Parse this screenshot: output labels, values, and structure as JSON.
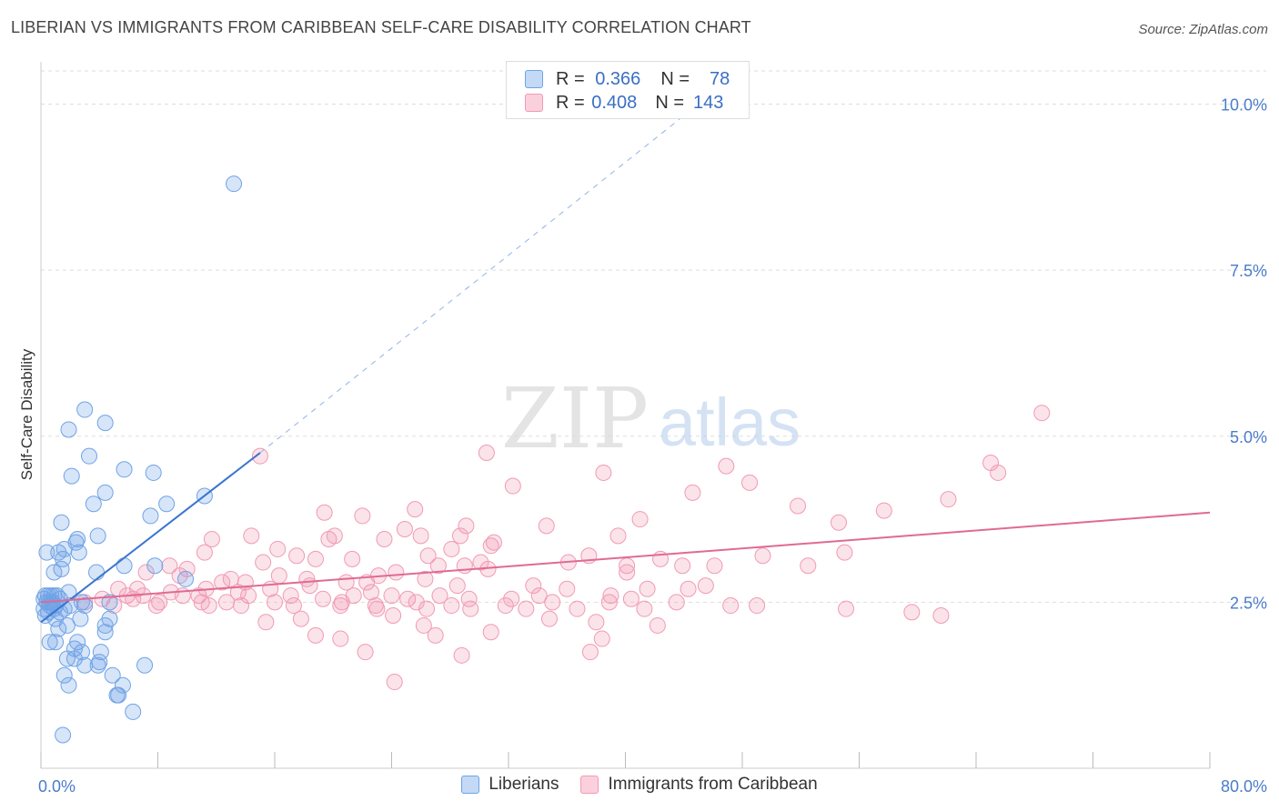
{
  "header": {
    "title": "LIBERIAN VS IMMIGRANTS FROM CARIBBEAN SELF-CARE DISABILITY CORRELATION CHART",
    "source": "Source: ZipAtlas.com"
  },
  "legend": {
    "rows": [
      {
        "r_label": "R =",
        "r_value": "0.366",
        "n_label": "N =",
        "n_value": "78",
        "color": "#6fa3e6"
      },
      {
        "r_label": "R =",
        "r_value": "0.408",
        "n_label": "N =",
        "n_value": "143",
        "color": "#f19ab5"
      }
    ]
  },
  "watermark": {
    "zip": "ZIP",
    "atlas": "atlas"
  },
  "chart_data": {
    "type": "scatter",
    "title": "LIBERIAN VS IMMIGRANTS FROM CARIBBEAN SELF-CARE DISABILITY CORRELATION CHART",
    "ylabel": "Self-Care Disability",
    "xlabel": "",
    "xlim": [
      0,
      80
    ],
    "ylim": [
      0,
      10.5
    ],
    "x_tick_labels": [
      "0.0%",
      "80.0%"
    ],
    "y_tick_labels": [
      "2.5%",
      "5.0%",
      "7.5%",
      "10.0%"
    ],
    "y_ticks": [
      2.5,
      5.0,
      7.5,
      10.0
    ],
    "grid": true,
    "legend_position": "bottom-center",
    "series": [
      {
        "name": "Liberians",
        "color": "#6fa3e6",
        "trend": {
          "x": [
            0,
            15
          ],
          "y": [
            2.2,
            4.75
          ],
          "dashed_to": [
            45,
            10.0
          ]
        },
        "points": [
          [
            13.2,
            8.8
          ],
          [
            3.0,
            5.4
          ],
          [
            1.9,
            5.1
          ],
          [
            4.4,
            5.2
          ],
          [
            3.3,
            4.7
          ],
          [
            5.7,
            4.5
          ],
          [
            7.7,
            4.45
          ],
          [
            2.1,
            4.4
          ],
          [
            4.4,
            4.15
          ],
          [
            11.2,
            4.1
          ],
          [
            8.6,
            3.98
          ],
          [
            3.6,
            3.98
          ],
          [
            7.5,
            3.8
          ],
          [
            1.4,
            3.7
          ],
          [
            3.9,
            3.5
          ],
          [
            2.5,
            3.45
          ],
          [
            1.6,
            3.3
          ],
          [
            0.4,
            3.25
          ],
          [
            1.2,
            3.25
          ],
          [
            2.6,
            3.25
          ],
          [
            1.5,
            3.15
          ],
          [
            2.4,
            3.4
          ],
          [
            1.4,
            3.0
          ],
          [
            5.7,
            3.05
          ],
          [
            7.8,
            3.05
          ],
          [
            0.9,
            2.95
          ],
          [
            3.8,
            2.95
          ],
          [
            9.9,
            2.85
          ],
          [
            0.3,
            2.6
          ],
          [
            0.5,
            2.6
          ],
          [
            0.7,
            2.6
          ],
          [
            1.1,
            2.6
          ],
          [
            1.9,
            2.65
          ],
          [
            0.4,
            2.5
          ],
          [
            0.6,
            2.5
          ],
          [
            0.8,
            2.5
          ],
          [
            1.0,
            2.45
          ],
          [
            0.2,
            2.4
          ],
          [
            0.5,
            2.35
          ],
          [
            0.9,
            2.4
          ],
          [
            1.3,
            2.35
          ],
          [
            2.8,
            2.5
          ],
          [
            3.0,
            2.45
          ],
          [
            4.7,
            2.5
          ],
          [
            0.3,
            2.3
          ],
          [
            1.0,
            2.25
          ],
          [
            2.7,
            2.25
          ],
          [
            4.7,
            2.25
          ],
          [
            1.8,
            2.15
          ],
          [
            1.2,
            2.1
          ],
          [
            4.4,
            2.15
          ],
          [
            4.4,
            2.05
          ],
          [
            0.6,
            1.9
          ],
          [
            1.0,
            1.9
          ],
          [
            2.5,
            1.9
          ],
          [
            2.3,
            1.8
          ],
          [
            2.8,
            1.75
          ],
          [
            4.1,
            1.75
          ],
          [
            1.8,
            1.65
          ],
          [
            2.3,
            1.65
          ],
          [
            3.0,
            1.55
          ],
          [
            3.9,
            1.55
          ],
          [
            4.0,
            1.6
          ],
          [
            7.1,
            1.55
          ],
          [
            1.6,
            1.4
          ],
          [
            4.9,
            1.4
          ],
          [
            1.9,
            1.25
          ],
          [
            5.6,
            1.25
          ],
          [
            5.2,
            1.1
          ],
          [
            5.3,
            1.1
          ],
          [
            6.3,
            0.85
          ],
          [
            1.5,
            0.5
          ],
          [
            0.2,
            2.55
          ],
          [
            0.6,
            2.45
          ],
          [
            1.3,
            2.55
          ],
          [
            2.0,
            2.45
          ],
          [
            0.9,
            2.6
          ],
          [
            1.6,
            2.4
          ]
        ]
      },
      {
        "name": "Immigrants from Caribbean",
        "color": "#f19ab5",
        "trend": {
          "x": [
            0,
            80
          ],
          "y": [
            2.5,
            3.85
          ]
        },
        "points": [
          [
            68.5,
            5.35
          ],
          [
            15.0,
            4.7
          ],
          [
            30.5,
            4.75
          ],
          [
            65.0,
            4.6
          ],
          [
            65.5,
            4.45
          ],
          [
            38.5,
            4.45
          ],
          [
            46.9,
            4.55
          ],
          [
            48.5,
            4.3
          ],
          [
            32.3,
            4.25
          ],
          [
            44.6,
            4.15
          ],
          [
            62.1,
            4.05
          ],
          [
            51.8,
            3.95
          ],
          [
            25.6,
            3.9
          ],
          [
            19.4,
            3.85
          ],
          [
            22.0,
            3.8
          ],
          [
            57.7,
            3.88
          ],
          [
            41.0,
            3.75
          ],
          [
            54.6,
            3.7
          ],
          [
            29.1,
            3.65
          ],
          [
            34.6,
            3.65
          ],
          [
            24.9,
            3.6
          ],
          [
            14.4,
            3.5
          ],
          [
            20.1,
            3.5
          ],
          [
            26.0,
            3.5
          ],
          [
            28.7,
            3.5
          ],
          [
            39.5,
            3.5
          ],
          [
            11.7,
            3.45
          ],
          [
            19.7,
            3.45
          ],
          [
            23.5,
            3.45
          ],
          [
            31.0,
            3.4
          ],
          [
            30.8,
            3.35
          ],
          [
            28.1,
            3.3
          ],
          [
            16.2,
            3.3
          ],
          [
            11.2,
            3.25
          ],
          [
            17.5,
            3.2
          ],
          [
            26.5,
            3.2
          ],
          [
            37.5,
            3.2
          ],
          [
            42.4,
            3.15
          ],
          [
            49.4,
            3.2
          ],
          [
            55.0,
            3.25
          ],
          [
            15.2,
            3.1
          ],
          [
            18.8,
            3.15
          ],
          [
            21.3,
            3.15
          ],
          [
            27.2,
            3.05
          ],
          [
            29.0,
            3.05
          ],
          [
            30.1,
            3.1
          ],
          [
            36.1,
            3.1
          ],
          [
            40.1,
            3.05
          ],
          [
            43.9,
            3.05
          ],
          [
            46.1,
            3.05
          ],
          [
            52.5,
            3.05
          ],
          [
            8.8,
            3.05
          ],
          [
            10.0,
            3.0
          ],
          [
            7.2,
            2.95
          ],
          [
            9.5,
            2.9
          ],
          [
            24.3,
            2.95
          ],
          [
            30.6,
            3.0
          ],
          [
            40.1,
            2.95
          ],
          [
            13.0,
            2.85
          ],
          [
            16.3,
            2.9
          ],
          [
            18.2,
            2.85
          ],
          [
            23.1,
            2.9
          ],
          [
            26.3,
            2.85
          ],
          [
            12.4,
            2.8
          ],
          [
            14.0,
            2.8
          ],
          [
            20.9,
            2.8
          ],
          [
            22.3,
            2.8
          ],
          [
            28.5,
            2.75
          ],
          [
            33.7,
            2.75
          ],
          [
            36.0,
            2.7
          ],
          [
            41.5,
            2.7
          ],
          [
            44.3,
            2.7
          ],
          [
            45.5,
            2.75
          ],
          [
            5.3,
            2.7
          ],
          [
            6.6,
            2.7
          ],
          [
            8.9,
            2.65
          ],
          [
            11.3,
            2.7
          ],
          [
            13.5,
            2.65
          ],
          [
            15.7,
            2.7
          ],
          [
            18.4,
            2.75
          ],
          [
            22.6,
            2.65
          ],
          [
            5.9,
            2.6
          ],
          [
            7.0,
            2.6
          ],
          [
            9.7,
            2.6
          ],
          [
            10.8,
            2.6
          ],
          [
            14.2,
            2.6
          ],
          [
            17.1,
            2.6
          ],
          [
            19.3,
            2.55
          ],
          [
            21.4,
            2.6
          ],
          [
            24.0,
            2.6
          ],
          [
            25.1,
            2.55
          ],
          [
            27.3,
            2.6
          ],
          [
            29.3,
            2.55
          ],
          [
            32.2,
            2.55
          ],
          [
            34.1,
            2.6
          ],
          [
            39.0,
            2.6
          ],
          [
            40.4,
            2.55
          ],
          [
            4.2,
            2.55
          ],
          [
            6.3,
            2.55
          ],
          [
            8.1,
            2.5
          ],
          [
            11.0,
            2.5
          ],
          [
            12.7,
            2.5
          ],
          [
            16.0,
            2.5
          ],
          [
            20.6,
            2.5
          ],
          [
            22.9,
            2.45
          ],
          [
            25.7,
            2.5
          ],
          [
            28.1,
            2.45
          ],
          [
            31.8,
            2.45
          ],
          [
            35.0,
            2.5
          ],
          [
            38.9,
            2.5
          ],
          [
            43.5,
            2.5
          ],
          [
            3.0,
            2.5
          ],
          [
            5.0,
            2.45
          ],
          [
            7.9,
            2.45
          ],
          [
            11.5,
            2.45
          ],
          [
            13.7,
            2.45
          ],
          [
            17.3,
            2.45
          ],
          [
            20.5,
            2.45
          ],
          [
            23.0,
            2.4
          ],
          [
            26.4,
            2.4
          ],
          [
            29.4,
            2.4
          ],
          [
            33.2,
            2.4
          ],
          [
            36.7,
            2.4
          ],
          [
            41.3,
            2.4
          ],
          [
            47.2,
            2.45
          ],
          [
            49.0,
            2.45
          ],
          [
            55.1,
            2.4
          ],
          [
            59.6,
            2.35
          ],
          [
            61.6,
            2.3
          ],
          [
            34.8,
            2.25
          ],
          [
            38.0,
            2.2
          ],
          [
            42.2,
            2.15
          ],
          [
            15.4,
            2.2
          ],
          [
            17.8,
            2.25
          ],
          [
            24.1,
            2.3
          ],
          [
            26.2,
            2.15
          ],
          [
            27.0,
            2.0
          ],
          [
            30.8,
            2.05
          ],
          [
            38.4,
            1.95
          ],
          [
            18.8,
            2.0
          ],
          [
            20.5,
            1.95
          ],
          [
            22.2,
            1.75
          ],
          [
            28.8,
            1.7
          ],
          [
            37.6,
            1.75
          ],
          [
            24.2,
            1.3
          ]
        ]
      }
    ]
  }
}
